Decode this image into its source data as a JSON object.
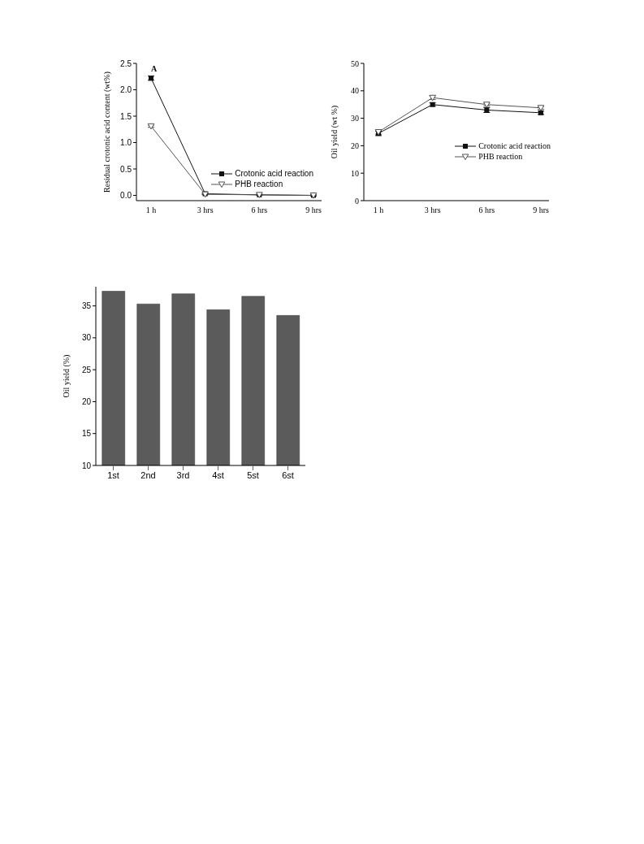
{
  "chart_data": [
    {
      "type": "line",
      "ylabel": "Residual crotonic acid content (wt%)",
      "categories": [
        "1 h",
        "3 hrs",
        "6 hrs",
        "9 hrs"
      ],
      "ylim": [
        -0.1,
        2.5
      ],
      "yticks": [
        {
          "value": 0,
          "label": "0.0"
        },
        0.5,
        {
          "value": 1,
          "label": "1.0"
        },
        1.5,
        {
          "value": 2,
          "label": "2.0"
        },
        2.5
      ],
      "annotations": [
        "A"
      ],
      "legend": "bottom right",
      "series": [
        {
          "name": "Crotonic acid reaction",
          "color": "#111111",
          "marker": "square",
          "values": [
            2.22,
            0.03,
            0.01,
            0.0
          ],
          "errors": [
            0.04,
            0.01,
            0.01,
            0.01
          ]
        },
        {
          "name": "PHB reaction",
          "color": "#555555",
          "marker": "triangle",
          "values": [
            1.31,
            0.02,
            0.01,
            0.0
          ],
          "errors": [
            0.02,
            0.01,
            0.01,
            0.01
          ]
        }
      ]
    },
    {
      "type": "line",
      "ylabel": "Oil yield (wt %)",
      "categories": [
        "1 h",
        "3 hrs",
        "6 hrs",
        "9 hrs"
      ],
      "ylim": [
        0,
        50
      ],
      "yticks": [
        0,
        10,
        20,
        30,
        40,
        50
      ],
      "legend": "right",
      "series": [
        {
          "name": "Crotonic acid reaction",
          "color": "#111111",
          "marker": "square",
          "values": [
            24.5,
            35,
            33,
            32
          ],
          "errors": [
            0.8,
            0.6,
            0.9,
            0.6
          ]
        },
        {
          "name": "PHB reaction",
          "color": "#555555",
          "marker": "triangle",
          "values": [
            25,
            37.5,
            35,
            33.8
          ],
          "errors": [
            0.8,
            0.7,
            0.5,
            0.5
          ]
        }
      ]
    },
    {
      "type": "bar",
      "ylabel": "Oil yield (%)",
      "categories": [
        "1st",
        "2nd",
        "3rd",
        "4st",
        "5st",
        "6st"
      ],
      "ylim": [
        10,
        38
      ],
      "yticks": [
        10,
        15,
        20,
        25,
        30,
        35
      ],
      "legend": false,
      "series": [
        {
          "color": "#5b5b5b",
          "values": [
            37.3,
            35.3,
            36.9,
            34.4,
            36.5,
            33.5
          ]
        }
      ]
    }
  ]
}
